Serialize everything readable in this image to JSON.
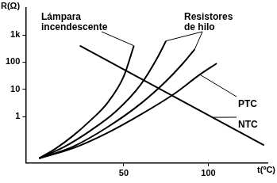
{
  "chart_data": {
    "type": "line",
    "x_label": "t(ºC)",
    "y_label": "R(Ω)",
    "log": "y",
    "grid": false,
    "xlim": [
      -8,
      135
    ],
    "xticks": [
      50,
      100
    ],
    "ylim": [
      0.02,
      10000
    ],
    "yticks": [
      1,
      10,
      100,
      {
        "value": 1000,
        "label": "1k"
      }
    ],
    "series": [
      {
        "name": "Lámpara incendescente",
        "color": "#000000",
        "x": [
          0,
          10,
          20,
          30,
          40,
          50,
          56
        ],
        "values": [
          0.03,
          0.07,
          0.2,
          0.7,
          3,
          30,
          400
        ]
      },
      {
        "name": "Resistores de hilo",
        "color": "#000000",
        "x": [
          0,
          15,
          30,
          45,
          60,
          70,
          75
        ],
        "values": [
          0.03,
          0.08,
          0.3,
          1.5,
          15,
          150,
          600
        ]
      },
      {
        "name": "Resistores de hilo",
        "color": "#000000",
        "x": [
          0,
          20,
          40,
          60,
          75,
          85,
          92
        ],
        "values": [
          0.03,
          0.08,
          0.4,
          3,
          20,
          90,
          300
        ]
      },
      {
        "name": "PTC",
        "color": "#000000",
        "x": [
          0,
          20,
          40,
          60,
          80,
          95,
          105
        ],
        "values": [
          0.03,
          0.07,
          0.25,
          1.2,
          7,
          35,
          90
        ]
      },
      {
        "name": "NTC",
        "color": "#000000",
        "x": [
          24,
          133
        ],
        "values": [
          400,
          0.09
        ]
      }
    ]
  }
}
